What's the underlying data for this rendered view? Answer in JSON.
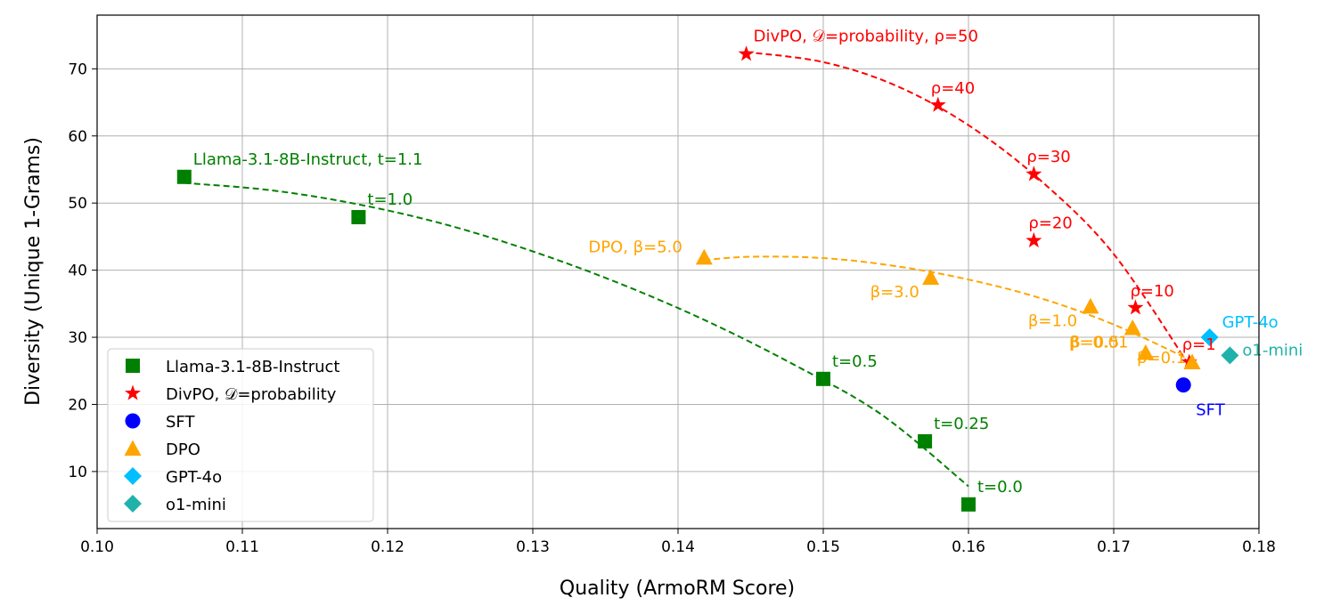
{
  "chart_data": {
    "type": "scatter",
    "xlabel": "Quality (ArmoRM Score)",
    "ylabel": "Diversity (Unique 1-Grams)",
    "xlim": [
      0.1,
      0.18
    ],
    "ylim": [
      1.5,
      78
    ],
    "x_ticks": [
      0.1,
      0.11,
      0.12,
      0.13,
      0.14,
      0.15,
      0.16,
      0.17,
      0.18
    ],
    "x_tick_labels": [
      "0.10",
      "0.11",
      "0.12",
      "0.13",
      "0.14",
      "0.15",
      "0.16",
      "0.17",
      "0.18"
    ],
    "y_ticks": [
      10,
      20,
      30,
      40,
      50,
      60,
      70
    ],
    "y_tick_labels": [
      "10",
      "20",
      "30",
      "40",
      "50",
      "60",
      "70"
    ],
    "grid": true,
    "legend_position": "lower-left",
    "series": [
      {
        "name": "Llama-3.1-8B-Instruct",
        "marker": "square",
        "color": "#008000",
        "points": [
          {
            "x": 0.106,
            "y": 53.9,
            "label": "Llama-3.1-8B-Instruct, t=1.1"
          },
          {
            "x": 0.118,
            "y": 47.9,
            "label": "t=1.0"
          },
          {
            "x": 0.15,
            "y": 23.8,
            "label": "t=0.5"
          },
          {
            "x": 0.157,
            "y": 14.5,
            "label": "t=0.25"
          },
          {
            "x": 0.16,
            "y": 5.1,
            "label": "t=0.0"
          }
        ],
        "fit_curve": [
          [
            0.106,
            53.0
          ],
          [
            0.112,
            51.9
          ],
          [
            0.118,
            49.8
          ],
          [
            0.124,
            46.8
          ],
          [
            0.13,
            42.8
          ],
          [
            0.136,
            38.0
          ],
          [
            0.142,
            32.4
          ],
          [
            0.148,
            25.9
          ],
          [
            0.154,
            18.5
          ],
          [
            0.16,
            7.8
          ]
        ]
      },
      {
        "name": "DivPO, 𝒟=probability",
        "marker": "star",
        "color": "#ff0000",
        "points": [
          {
            "x": 0.1447,
            "y": 72.2,
            "label": "DivPO, 𝒟=probability, ρ=50"
          },
          {
            "x": 0.1579,
            "y": 64.6,
            "label": "ρ=40"
          },
          {
            "x": 0.1645,
            "y": 54.3,
            "label": "ρ=30"
          },
          {
            "x": 0.1645,
            "y": 44.4,
            "label": "ρ=20"
          },
          {
            "x": 0.1715,
            "y": 34.4,
            "label": "ρ=10"
          },
          {
            "x": 0.1752,
            "y": 26.3,
            "label": "ρ=1"
          }
        ],
        "fit_curve": [
          [
            0.1447,
            72.5
          ],
          [
            0.15,
            71.0
          ],
          [
            0.155,
            67.5
          ],
          [
            0.16,
            61.6
          ],
          [
            0.165,
            53.3
          ],
          [
            0.17,
            42.4
          ],
          [
            0.1752,
            25.8
          ]
        ]
      },
      {
        "name": "SFT",
        "marker": "circle",
        "color": "#0000ff",
        "points": [
          {
            "x": 0.1748,
            "y": 22.9,
            "label": "SFT"
          }
        ]
      },
      {
        "name": "DPO",
        "marker": "triangle",
        "color": "#ffa500",
        "points": [
          {
            "x": 0.1418,
            "y": 41.9,
            "label": "DPO, β=5.0"
          },
          {
            "x": 0.1574,
            "y": 38.9,
            "label": "β=3.0"
          },
          {
            "x": 0.1684,
            "y": 34.6,
            "label": "β=1.0"
          },
          {
            "x": 0.1713,
            "y": 31.4,
            "label": "β=0.5"
          },
          {
            "x": 0.1722,
            "y": 27.7,
            "label": "β=0.01"
          },
          {
            "x": 0.1754,
            "y": 26.3,
            "label": "β=0.1"
          }
        ],
        "fit_curve": [
          [
            0.1418,
            41.5
          ],
          [
            0.145,
            42.0
          ],
          [
            0.15,
            41.8
          ],
          [
            0.155,
            40.6
          ],
          [
            0.16,
            38.6
          ],
          [
            0.165,
            35.8
          ],
          [
            0.17,
            31.9
          ],
          [
            0.1754,
            26.5
          ]
        ]
      },
      {
        "name": "GPT-4o",
        "marker": "diamond",
        "color": "#00bfff",
        "points": [
          {
            "x": 0.1766,
            "y": 30.0,
            "label": "GPT-4o"
          }
        ]
      },
      {
        "name": "o1-mini",
        "marker": "diamond",
        "color": "#20b2aa",
        "points": [
          {
            "x": 0.178,
            "y": 27.3,
            "label": "o1-mini"
          }
        ]
      }
    ]
  }
}
